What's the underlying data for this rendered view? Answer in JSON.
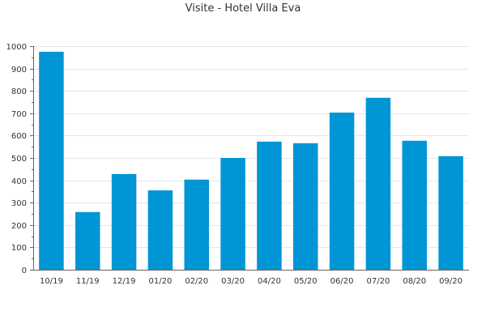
{
  "chart_data": {
    "type": "bar",
    "title": "Visite - Hotel Villa Eva",
    "xlabel": "",
    "ylabel": "",
    "categories": [
      "10/19",
      "11/19",
      "12/19",
      "01/20",
      "02/20",
      "03/20",
      "04/20",
      "05/20",
      "06/20",
      "07/20",
      "08/20",
      "09/20"
    ],
    "values": [
      975,
      258,
      428,
      355,
      403,
      500,
      573,
      566,
      703,
      769,
      577,
      508
    ],
    "ylim": [
      0,
      1000
    ],
    "yticks": [
      0,
      100,
      200,
      300,
      400,
      500,
      600,
      700,
      800,
      900,
      1000
    ],
    "grid": true,
    "legend": "none",
    "colors": {
      "bar": "#0095d5",
      "grid": "#e6e6e6",
      "axis": "#666666"
    }
  }
}
